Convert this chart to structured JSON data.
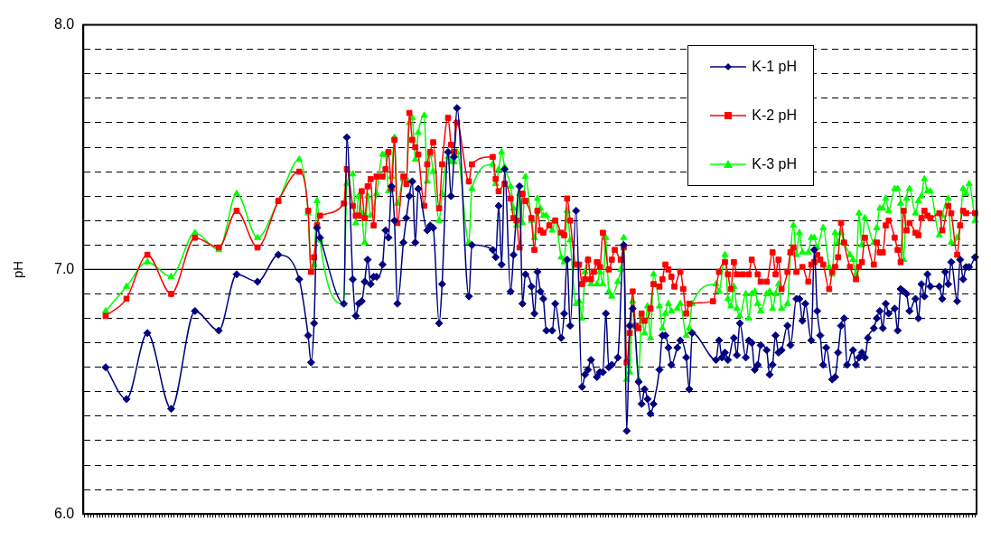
{
  "chart_data": {
    "type": "line",
    "ylabel": "pH",
    "categories": [
      null,
      null,
      null,
      null,
      null,
      null,
      null,
      null,
      null,
      null,
      null,
      null,
      null,
      null,
      null,
      null,
      null,
      null,
      null,
      null,
      null,
      null,
      null,
      null,
      null,
      null,
      null,
      null,
      null,
      null,
      null,
      null,
      null,
      null,
      null,
      null,
      null,
      null,
      null,
      null,
      null,
      null,
      null,
      null,
      null,
      null,
      null,
      null,
      null,
      null,
      null,
      null,
      null,
      null,
      null,
      null,
      null,
      null,
      null,
      null,
      null,
      null,
      null,
      null,
      null,
      null,
      null,
      null,
      null,
      null,
      null,
      null,
      null,
      null,
      null,
      null,
      null,
      null,
      null,
      null,
      null,
      null,
      null,
      null,
      null,
      null,
      null,
      null,
      null,
      null,
      null,
      null,
      null,
      null,
      null,
      null,
      null,
      null,
      null,
      null,
      null,
      null,
      null,
      null,
      null,
      null,
      null,
      null,
      null,
      null,
      null,
      null,
      null,
      null,
      null,
      null,
      null,
      null,
      null,
      null,
      null,
      null,
      null,
      null,
      null,
      null,
      null,
      null,
      null,
      null,
      null,
      null,
      null,
      null,
      null,
      null,
      null,
      null,
      null,
      null,
      null,
      null,
      null,
      null,
      null,
      null,
      null,
      null,
      null,
      null,
      null,
      null,
      null,
      null,
      null,
      null,
      null,
      null,
      null,
      null,
      null,
      null,
      null,
      null,
      null,
      null,
      null,
      null,
      null,
      null,
      null,
      null,
      null,
      null,
      null,
      null,
      null,
      null,
      null,
      null,
      null,
      null,
      null,
      null,
      null,
      null,
      null,
      null,
      null,
      null,
      null,
      null,
      null,
      null,
      null,
      null,
      null,
      null,
      null,
      null,
      null,
      null,
      null,
      null,
      null,
      null,
      null,
      null,
      null,
      null,
      null,
      null,
      null,
      null,
      null,
      null,
      null,
      null,
      null,
      null,
      null,
      null,
      null,
      null,
      null,
      null,
      null,
      null,
      null,
      null,
      null,
      null,
      null,
      null,
      null,
      null,
      null,
      null,
      null,
      null,
      null,
      null,
      null,
      null,
      null,
      null,
      null,
      null,
      null,
      null,
      null,
      null,
      null,
      null,
      null,
      null,
      null,
      null,
      null,
      null,
      null,
      null,
      null,
      null,
      null,
      null,
      null,
      null,
      null,
      null,
      null,
      null,
      null,
      null,
      null,
      null,
      null,
      null,
      null,
      null,
      null,
      null,
      null,
      null,
      null,
      null,
      null,
      null,
      null,
      null,
      null,
      null,
      null,
      null,
      null,
      null,
      null,
      null,
      null,
      null
    ],
    "series": [
      {
        "name": "K-1 pH",
        "color": "#000080",
        "marker": "diamond",
        "values": [
          null,
          null,
          null,
          null,
          null,
          null,
          null,
          6.6,
          null,
          null,
          null,
          null,
          null,
          null,
          6.47,
          null,
          null,
          null,
          null,
          null,
          null,
          6.74,
          null,
          null,
          null,
          null,
          null,
          null,
          null,
          6.43,
          null,
          null,
          null,
          null,
          null,
          null,
          null,
          6.83,
          null,
          null,
          null,
          null,
          null,
          null,
          null,
          6.75,
          null,
          null,
          null,
          null,
          null,
          6.98,
          null,
          null,
          null,
          null,
          null,
          null,
          6.95,
          null,
          null,
          null,
          null,
          null,
          null,
          7.06,
          null,
          null,
          null,
          null,
          null,
          null,
          6.96,
          null,
          null,
          6.73,
          6.62,
          6.78,
          7.17,
          7.13,
          null,
          null,
          null,
          null,
          null,
          null,
          null,
          6.86,
          7.54,
          null,
          6.96,
          6.81,
          6.86,
          6.87,
          6.95,
          7.04,
          6.94,
          6.97,
          6.97,
          null,
          7.02,
          7.16,
          7.13,
          7.34,
          7.2,
          6.86,
          null,
          7.11,
          7.21,
          7.3,
          7.36,
          7.11,
          7.33,
          null,
          null,
          7.16,
          7.18,
          7.17,
          null,
          6.78,
          6.94,
          null,
          7.48,
          7.3,
          7.46,
          7.66,
          null,
          null,
          null,
          6.89,
          7.1,
          null,
          null,
          null,
          null,
          null,
          null,
          7.08,
          7.05,
          7.26,
          7.02,
          7.41,
          null,
          6.91,
          7.06,
          null,
          7.34,
          6.86,
          6.98,
          null,
          6.93,
          6.82,
          6.99,
          6.91,
          6.88,
          6.75,
          null,
          6.75,
          6.86,
          null,
          6.72,
          6.82,
          7.04,
          6.77,
          null,
          7.24,
          null,
          6.52,
          6.57,
          6.59,
          6.63,
          null,
          6.56,
          6.58,
          6.58,
          6.82,
          6.6,
          6.61,
          null,
          6.64,
          null,
          7.1,
          6.34,
          6.77,
          6.84,
          null,
          6.54,
          6.45,
          6.51,
          6.47,
          6.41,
          6.45,
          null,
          6.59,
          6.73,
          6.73,
          6.68,
          6.61,
          null,
          6.68,
          6.71,
          null,
          6.64,
          6.51,
          6.74,
          null,
          null,
          null,
          null,
          null,
          null,
          null,
          6.63,
          6.71,
          6.64,
          6.66,
          6.63,
          null,
          6.72,
          6.65,
          6.78,
          null,
          6.64,
          6.71,
          6.7,
          6.59,
          6.61,
          6.69,
          null,
          6.67,
          6.57,
          6.61,
          6.73,
          6.66,
          6.67,
          null,
          6.77,
          6.69,
          null,
          6.88,
          6.88,
          6.79,
          6.86,
          null,
          6.71,
          7.08,
          6.83,
          6.73,
          6.61,
          6.68,
          null,
          6.55,
          6.56,
          6.66,
          6.77,
          6.8,
          6.61,
          null,
          6.67,
          6.61,
          6.64,
          6.66,
          6.64,
          6.72,
          null,
          6.76,
          6.8,
          6.83,
          6.76,
          6.86,
          6.82,
          null,
          6.84,
          6.75,
          6.92,
          6.91,
          6.9,
          6.83,
          null,
          6.88,
          6.8,
          6.94,
          6.89,
          6.98,
          6.93,
          null,
          null,
          6.93,
          6.88,
          6.99,
          6.94,
          7.03,
          null,
          6.87,
          7.04,
          6.96,
          7.01,
          7.01,
          null,
          7.05
        ]
      },
      {
        "name": "K-2 pH",
        "color": "#ff0000",
        "marker": "square",
        "values": [
          null,
          null,
          null,
          null,
          null,
          null,
          null,
          6.81,
          null,
          null,
          null,
          null,
          null,
          null,
          6.88,
          null,
          null,
          null,
          null,
          null,
          null,
          7.06,
          null,
          null,
          null,
          null,
          null,
          null,
          null,
          6.9,
          null,
          null,
          null,
          null,
          null,
          null,
          null,
          7.13,
          null,
          null,
          null,
          null,
          null,
          null,
          null,
          7.09,
          null,
          null,
          null,
          null,
          null,
          7.24,
          null,
          null,
          null,
          null,
          null,
          null,
          7.09,
          null,
          null,
          null,
          null,
          null,
          null,
          7.28,
          null,
          null,
          null,
          null,
          null,
          null,
          7.4,
          null,
          null,
          7.24,
          6.99,
          7.05,
          7.18,
          7.22,
          null,
          null,
          null,
          null,
          null,
          null,
          null,
          7.27,
          7.41,
          null,
          7.26,
          7.22,
          7.22,
          7.32,
          7.21,
          7.34,
          7.37,
          7.18,
          7.38,
          null,
          7.38,
          7.41,
          7.48,
          7.33,
          7.53,
          7.19,
          null,
          7.38,
          7.35,
          7.64,
          7.53,
          7.5,
          7.47,
          null,
          7.26,
          7.43,
          7.48,
          7.52,
          null,
          7.25,
          7.43,
          null,
          7.62,
          7.51,
          7.48,
          7.6,
          null,
          null,
          null,
          7.36,
          7.43,
          null,
          null,
          null,
          null,
          null,
          null,
          7.46,
          7.37,
          7.32,
          null,
          7.35,
          null,
          7.29,
          7.21,
          7.2,
          7.09,
          7.31,
          7.28,
          null,
          7.21,
          7.08,
          7.24,
          7.16,
          7.15,
          null,
          7.18,
          null,
          7.2,
          null,
          7.15,
          7.14,
          7.29,
          7.2,
          null,
          7.02,
          7.02,
          6.94,
          6.96,
          7.04,
          6.96,
          6.99,
          7.03,
          7.01,
          7.15,
          null,
          7.0,
          7.04,
          7.08,
          null,
          7.04,
          7.09,
          6.62,
          6.74,
          6.91,
          6.77,
          6.76,
          6.82,
          6.79,
          null,
          6.84,
          6.94,
          null,
          6.93,
          6.96,
          7.02,
          7.0,
          6.97,
          6.93,
          null,
          6.99,
          6.92,
          6.82,
          6.86,
          null,
          null,
          null,
          null,
          null,
          null,
          null,
          6.87,
          null,
          6.99,
          null,
          7.03,
          6.98,
          6.92,
          7.03,
          6.98,
          null,
          6.98,
          null,
          6.98,
          7.04,
          null,
          6.98,
          6.95,
          null,
          6.95,
          null,
          7.07,
          6.98,
          7.04,
          6.92,
          null,
          6.99,
          7.07,
          7.09,
          6.99,
          null,
          7.01,
          null,
          6.95,
          7.02,
          7.03,
          7.06,
          7.04,
          7.02,
          null,
          6.92,
          6.99,
          7.01,
          7.05,
          7.19,
          7.11,
          null,
          7.01,
          null,
          6.96,
          7.01,
          7.03,
          7.13,
          null,
          null,
          7.02,
          7.11,
          7.07,
          7.07,
          7.18,
          7.2,
          null,
          7.13,
          7.08,
          7.03,
          7.24,
          7.16,
          7.19,
          null,
          7.15,
          7.14,
          7.21,
          7.24,
          7.22,
          7.21,
          null,
          null,
          7.23,
          7.16,
          null,
          7.26,
          7.23,
          null,
          7.06,
          7.18,
          7.24,
          7.23,
          null,
          null,
          7.23
        ]
      },
      {
        "name": "K-3 pH",
        "color": "#00ff00",
        "marker": "triangle",
        "values": [
          null,
          null,
          null,
          null,
          null,
          null,
          null,
          6.83,
          null,
          null,
          null,
          null,
          null,
          null,
          6.93,
          null,
          null,
          null,
          null,
          null,
          null,
          7.03,
          null,
          null,
          null,
          null,
          null,
          null,
          null,
          6.97,
          null,
          null,
          null,
          null,
          null,
          null,
          null,
          7.15,
          null,
          null,
          null,
          null,
          null,
          null,
          null,
          7.08,
          null,
          null,
          null,
          null,
          null,
          7.31,
          null,
          null,
          null,
          null,
          null,
          null,
          7.13,
          null,
          null,
          null,
          null,
          null,
          null,
          7.28,
          null,
          null,
          null,
          null,
          null,
          null,
          7.45,
          null,
          null,
          7.23,
          6.99,
          7.02,
          7.28,
          7.12,
          null,
          null,
          null,
          null,
          null,
          null,
          null,
          6.86,
          7.35,
          null,
          7.39,
          7.19,
          7.3,
          7.23,
          7.11,
          7.3,
          7.22,
          null,
          7.31,
          null,
          7.47,
          7.47,
          7.32,
          7.38,
          7.54,
          7.27,
          null,
          7.37,
          7.37,
          7.6,
          7.62,
          7.45,
          7.56,
          null,
          7.63,
          7.36,
          7.47,
          7.4,
          null,
          7.2,
          7.31,
          null,
          7.46,
          7.44,
          7.44,
          7.48,
          null,
          null,
          null,
          7.11,
          7.33,
          null,
          null,
          null,
          null,
          null,
          null,
          7.43,
          7.35,
          7.41,
          7.48,
          7.42,
          null,
          7.34,
          7.25,
          7.18,
          7.31,
          7.19,
          7.38,
          null,
          7.2,
          7.13,
          7.29,
          7.25,
          7.22,
          7.22,
          null,
          7.16,
          7.2,
          null,
          7.05,
          7.03,
          7.24,
          7.12,
          null,
          6.86,
          6.87,
          6.8,
          6.99,
          7.04,
          6.94,
          null,
          6.94,
          6.99,
          6.94,
          7.13,
          6.91,
          6.89,
          null,
          6.95,
          7.0,
          7.13,
          6.55,
          6.58,
          6.87,
          null,
          6.55,
          6.81,
          6.74,
          6.85,
          6.72,
          6.98,
          null,
          6.85,
          6.76,
          6.82,
          6.86,
          6.83,
          null,
          6.84,
          6.86,
          null,
          6.73,
          6.76,
          6.86,
          null,
          null,
          null,
          null,
          null,
          null,
          null,
          6.94,
          6.91,
          null,
          7.06,
          6.88,
          6.85,
          6.93,
          6.84,
          6.81,
          null,
          6.9,
          6.8,
          6.9,
          6.91,
          6.86,
          6.83,
          null,
          6.9,
          6.91,
          6.84,
          6.9,
          6.94,
          6.84,
          null,
          6.86,
          7.07,
          7.18,
          7.06,
          7.15,
          7.07,
          null,
          7.07,
          7.13,
          7.13,
          7.09,
          null,
          7.17,
          null,
          7.01,
          6.98,
          7.15,
          7.11,
          7.15,
          7.11,
          null,
          7.06,
          7.04,
          6.98,
          7.23,
          7.1,
          7.21,
          null,
          null,
          7.11,
          7.17,
          7.25,
          7.25,
          7.29,
          7.24,
          null,
          7.33,
          7.33,
          7.27,
          7.04,
          7.29,
          7.33,
          null,
          7.23,
          7.28,
          7.3,
          7.37,
          7.32,
          7.32,
          null,
          null,
          7.14,
          7.22,
          null,
          7.29,
          7.11,
          null,
          7.13,
          7.18,
          7.33,
          7.31,
          7.35,
          null,
          7.2
        ]
      }
    ],
    "ylim": [
      6,
      8
    ],
    "yticks": [
      {
        "value": 6,
        "label": "6.0"
      },
      {
        "value": 6.1,
        "label": null
      },
      {
        "value": 6.2,
        "label": null
      },
      {
        "value": 6.3,
        "label": null
      },
      {
        "value": 6.4,
        "label": null
      },
      {
        "value": 6.5,
        "label": null
      },
      {
        "value": 6.6,
        "label": null
      },
      {
        "value": 6.7,
        "label": null
      },
      {
        "value": 6.8,
        "label": null
      },
      {
        "value": 6.9,
        "label": null
      },
      {
        "value": 7,
        "label": "7.0"
      },
      {
        "value": 7.1,
        "label": null
      },
      {
        "value": 7.2,
        "label": null
      },
      {
        "value": 7.3,
        "label": null
      },
      {
        "value": 7.4,
        "label": null
      },
      {
        "value": 7.5,
        "label": null
      },
      {
        "value": 7.6,
        "label": null
      },
      {
        "value": 7.7,
        "label": null
      },
      {
        "value": 7.8,
        "label": null
      },
      {
        "value": 7.9,
        "label": null
      },
      {
        "value": 8,
        "label": "8.0"
      }
    ],
    "ref_lines": [
      {
        "axis": "y",
        "value": 7,
        "color": "#000000",
        "line_style": "solid"
      }
    ],
    "grid": "y",
    "legend": "top right"
  }
}
